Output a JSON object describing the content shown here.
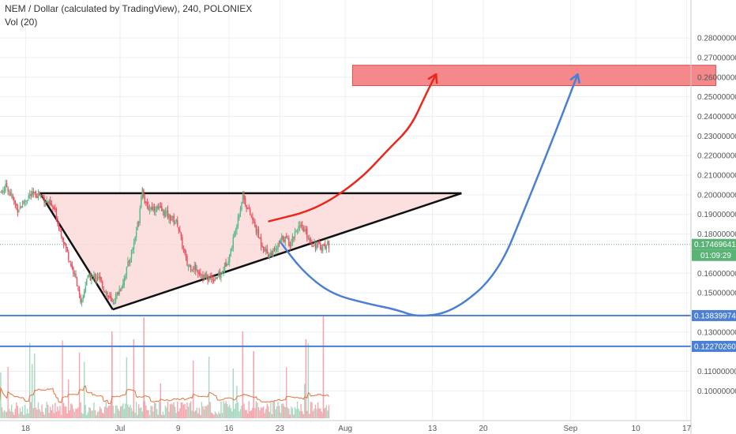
{
  "header": {
    "title": "NEM / Dollar (calculated by TradingView), 240, POLONIEX",
    "volume_label": "Vol (20)"
  },
  "chart_data": {
    "type": "candlestick",
    "symbol": "NEM / Dollar",
    "source": "POLONIEX",
    "interval": "240",
    "y_ticks": [
      "0.28000000",
      "0.27000000",
      "0.26000000",
      "0.25000000",
      "0.24000000",
      "0.23000000",
      "0.22000000",
      "0.21000000",
      "0.20000000",
      "0.19000000",
      "0.18000000",
      "0.16000000",
      "0.15000000",
      "0.13000000",
      "0.11000000",
      "0.10000000"
    ],
    "ylim": [
      0.0945,
      0.2885
    ],
    "x_ticks": [
      "18",
      "Jul",
      "9",
      "16",
      "23",
      "Aug",
      "13",
      "20",
      "Sep",
      "10",
      "17"
    ],
    "x_tick_days": [
      -13,
      0,
      8,
      15,
      22,
      31,
      43,
      50,
      62,
      71,
      78
    ],
    "price_tags": [
      {
        "label": "0.17469641",
        "value": 0.1747,
        "color": "#58b374",
        "time": "01:09:29"
      },
      {
        "label": "0.13839974",
        "value": 0.1384,
        "color": "#4a7fd4"
      },
      {
        "label": "0.12270260",
        "value": 0.1227,
        "color": "#4a7fd4"
      }
    ],
    "horizontal_lines": [
      {
        "value": 0.1384,
        "color": "#4a7fd4"
      },
      {
        "value": 0.1227,
        "color": "#4a7fd4"
      }
    ],
    "dotted_line": {
      "value": 0.1747,
      "color": "#58b374"
    },
    "target_zone": {
      "from_day": 32,
      "to_day": 82,
      "low": 0.2557,
      "high": 0.2661,
      "color": "#f4888a"
    },
    "triangle": {
      "points": [
        [
          -11,
          0.2008
        ],
        [
          -1,
          0.1415
        ],
        [
          47,
          0.2008
        ]
      ],
      "top_line_end_day": 47,
      "fill": "#fbdada",
      "stroke": "#111111"
    },
    "red_arrow": {
      "color": "#e8281c",
      "points": [
        [
          20.5,
          0.1865
        ],
        [
          27,
          0.1925
        ],
        [
          33,
          0.2075
        ],
        [
          37,
          0.2235
        ],
        [
          40,
          0.2345
        ],
        [
          42,
          0.2505
        ],
        [
          43.5,
          0.2615
        ]
      ]
    },
    "blue_arrow": {
      "color": "#4a7fd4",
      "points": [
        [
          22,
          0.1763
        ],
        [
          25,
          0.1615
        ],
        [
          29,
          0.1495
        ],
        [
          34,
          0.1445
        ],
        [
          38,
          0.1415
        ],
        [
          41,
          0.1375
        ],
        [
          46,
          0.1405
        ],
        [
          52,
          0.1595
        ],
        [
          56,
          0.1955
        ],
        [
          60,
          0.2325
        ],
        [
          63,
          0.2615
        ]
      ]
    },
    "candles_day_range": [
      -17,
      29
    ],
    "volume_axis_ticks": []
  },
  "colors": {
    "up": "#53b987",
    "down": "#eb4d5c",
    "vol_up": "#a7d9c0",
    "vol_down": "#f5a6ae",
    "vol_ma": "#e5723b",
    "grid": "#eceff2"
  }
}
